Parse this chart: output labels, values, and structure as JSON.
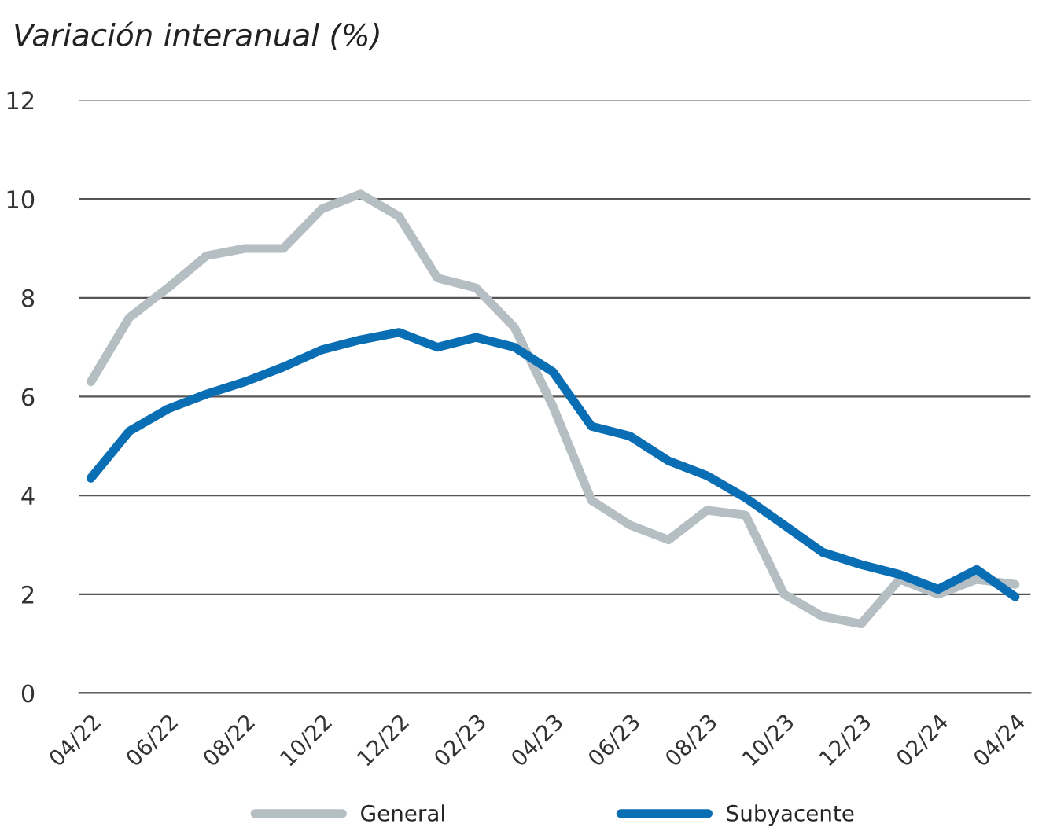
{
  "chart_data": {
    "type": "line",
    "subtitle": "Variación interanual (%)",
    "categories": [
      "04/22",
      null,
      "06/22",
      null,
      "08/22",
      null,
      "10/22",
      null,
      "12/22",
      null,
      "02/23",
      null,
      "04/23",
      null,
      "06/23",
      null,
      "08/23",
      null,
      "10/23",
      null,
      "12/23",
      null,
      "02/24",
      null,
      "04/24"
    ],
    "series": [
      {
        "name": "General",
        "color": "#b4bec3",
        "values": [
          6.3,
          7.6,
          8.2,
          8.85,
          9.0,
          9.0,
          9.8,
          10.1,
          9.65,
          8.4,
          8.2,
          7.4,
          5.8,
          3.9,
          3.4,
          3.1,
          3.7,
          3.6,
          2.0,
          1.55,
          1.4,
          2.3,
          2.0,
          2.3,
          2.2
        ]
      },
      {
        "name": "Subyacente",
        "color": "#0a6eb4",
        "values": [
          4.35,
          5.3,
          5.75,
          6.05,
          6.3,
          6.6,
          6.95,
          7.15,
          7.3,
          7.0,
          7.2,
          7.0,
          6.5,
          5.4,
          5.2,
          4.7,
          4.4,
          3.95,
          3.4,
          2.85,
          2.6,
          2.4,
          2.1,
          2.5,
          1.95
        ]
      }
    ],
    "ylim": [
      0,
      12
    ],
    "yticks": [
      0,
      2,
      4,
      6,
      8,
      10,
      12
    ],
    "grid": "y",
    "legend": "bottom",
    "line_style": "solid",
    "marker": "none"
  }
}
